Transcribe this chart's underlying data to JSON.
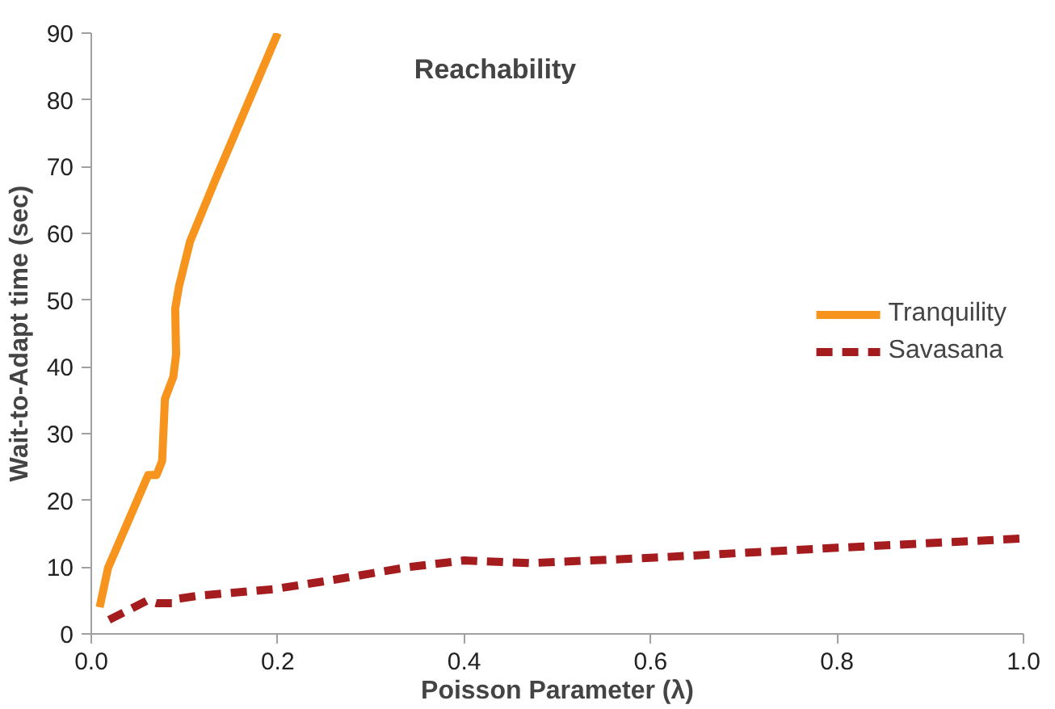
{
  "chart_data": {
    "type": "line",
    "title": "Reachability",
    "xlabel": "Poisson Parameter (λ)",
    "ylabel": "Wait-to-Adapt time (sec)",
    "xlim": [
      0,
      1
    ],
    "xticks": [
      {
        "value": 0,
        "label": "0.0"
      },
      {
        "value": 0.2,
        "label": "0.2"
      },
      {
        "value": 0.4,
        "label": "0.4"
      },
      {
        "value": 0.6,
        "label": "0.6"
      },
      {
        "value": 0.8,
        "label": "0.8"
      },
      {
        "value": 1,
        "label": "1.0"
      }
    ],
    "ylim": [
      0,
      90
    ],
    "yticks": [
      0,
      10,
      20,
      30,
      40,
      50,
      60,
      70,
      80,
      90
    ],
    "grid": false,
    "legend": "right",
    "series": [
      {
        "name": "Tranquility",
        "color": "#f7941d",
        "line_style": "solid",
        "x": [
          0.009,
          0.018,
          0.061,
          0.07,
          0.076,
          0.079,
          0.088,
          0.091,
          0.09,
          0.094,
          0.106,
          0.133,
          0.2
        ],
        "values": [
          4.0,
          9.9,
          23.8,
          23.8,
          25.9,
          35.2,
          38.5,
          41.9,
          48.7,
          52,
          58.8,
          68,
          90
        ]
      },
      {
        "name": "Savasana",
        "color": "#a51c1f",
        "line_style": "dashed",
        "x": [
          0.019,
          0.06,
          0.07,
          0.087,
          0.09,
          0.114,
          0.195,
          0.26,
          0.34,
          0.4,
          0.47,
          0.6,
          0.8,
          1.0
        ],
        "values": [
          2.1,
          5.0,
          4.6,
          4.6,
          5.2,
          5.7,
          6.7,
          8.1,
          10,
          11,
          10.6,
          11.4,
          12.9,
          14.3
        ]
      }
    ]
  }
}
